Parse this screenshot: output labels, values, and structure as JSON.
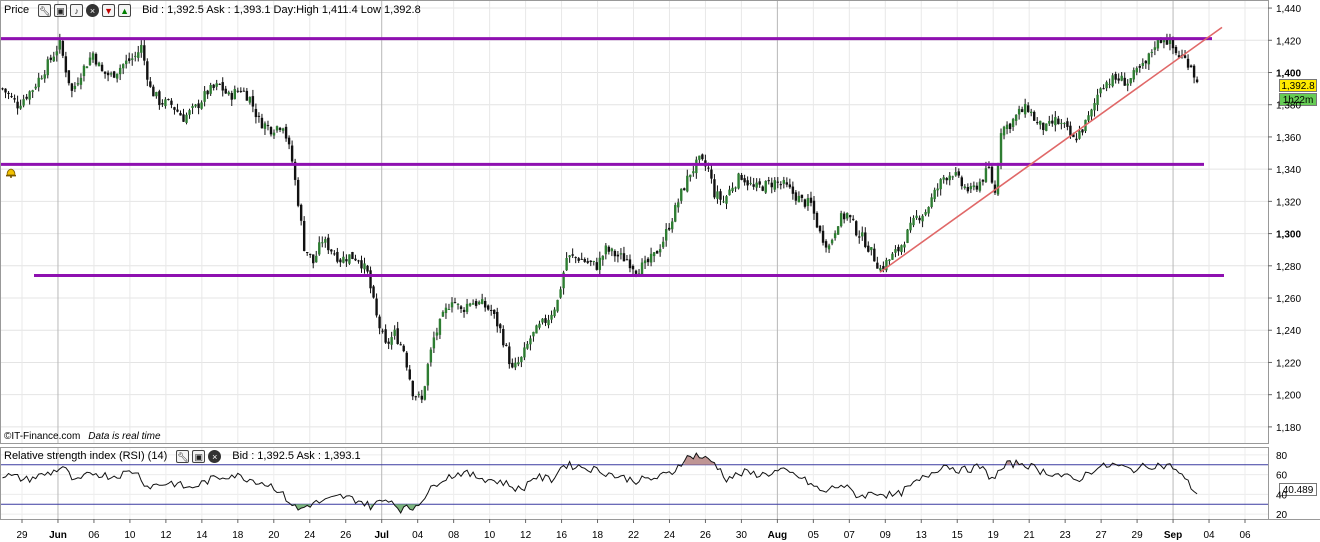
{
  "price_panel": {
    "label": "Price",
    "quote": "Bid : 1,392.5 Ask : 1,393.1 Day:High 1,411.4 Low 1,392.8",
    "icons": [
      "wrench-icon",
      "window-icon",
      "bell-icon",
      "close-icon",
      "down-arrow-icon",
      "up-arrow-icon"
    ],
    "price_badge": "1,392.8",
    "time_badge": "1h22m",
    "source": "©IT-Finance.com",
    "source_note": "Data is real time"
  },
  "rsi_panel": {
    "label": "Relative strength index (RSI) (14)",
    "quote": "Bid : 1,392.5 Ask : 1,393.1",
    "icons": [
      "wrench-icon",
      "window-icon",
      "close-icon"
    ],
    "value_badge": "40.489"
  },
  "colors": {
    "up_candle": "#2e7d32",
    "down_candle": "#111111",
    "support_resistance": "#8e10b0",
    "trendline": "#e06868",
    "rsi_line": "#111111",
    "rsi_bands": "#3a3aa0",
    "overbought_fill": "#b88a88",
    "oversold_fill": "#6fae6f",
    "price_badge_bg": "#ffea00",
    "time_badge_bg": "#66cc55"
  },
  "chart_data": [
    {
      "type": "candlestick",
      "x_axis": {
        "tick_labels": [
          "29",
          "Jun",
          "06",
          "10",
          "12",
          "14",
          "18",
          "20",
          "24",
          "26",
          "Jul",
          "04",
          "08",
          "10",
          "12",
          "16",
          "18",
          "22",
          "24",
          "26",
          "30",
          "Aug",
          "05",
          "07",
          "09",
          "13",
          "15",
          "19",
          "21",
          "23",
          "27",
          "29",
          "Sep",
          "04",
          "06"
        ],
        "bold_ticks": [
          "Jun",
          "Jul",
          "Aug",
          "Sep"
        ]
      },
      "y_axis": {
        "tick_labels": [
          "1,440",
          "1,420",
          "1,400",
          "1,380",
          "1,360",
          "1,340",
          "1,320",
          "1,300",
          "1,280",
          "1,260",
          "1,240",
          "1,220",
          "1,200",
          "1,180"
        ],
        "bold_ticks": [
          "1,400",
          "1,300"
        ],
        "range": [
          1170,
          1445
        ]
      },
      "grid": true,
      "series": [
        {
          "anchors": [
            [
              0,
              1390
            ],
            [
              5,
              1380
            ],
            [
              10,
              1390
            ],
            [
              15,
              1405
            ],
            [
              19,
              1418
            ],
            [
              21,
              1402
            ],
            [
              23,
              1388
            ],
            [
              26,
              1400
            ],
            [
              30,
              1412
            ],
            [
              33,
              1400
            ],
            [
              36,
              1398
            ],
            [
              40,
              1405
            ],
            [
              44,
              1410
            ],
            [
              46,
              1416
            ],
            [
              49,
              1390
            ],
            [
              52,
              1382
            ],
            [
              56,
              1380
            ],
            [
              60,
              1372
            ],
            [
              64,
              1378
            ],
            [
              68,
              1388
            ],
            [
              72,
              1392
            ],
            [
              75,
              1385
            ],
            [
              79,
              1390
            ],
            [
              82,
              1384
            ],
            [
              85,
              1370
            ],
            [
              89,
              1365
            ],
            [
              93,
              1368
            ],
            [
              96,
              1345
            ],
            [
              98,
              1320
            ],
            [
              100,
              1292
            ],
            [
              103,
              1282
            ],
            [
              106,
              1296
            ],
            [
              109,
              1290
            ],
            [
              112,
              1284
            ],
            [
              115,
              1286
            ],
            [
              118,
              1285
            ],
            [
              121,
              1275
            ],
            [
              124,
              1248
            ],
            [
              127,
              1230
            ],
            [
              130,
              1238
            ],
            [
              133,
              1228
            ],
            [
              136,
              1202
            ],
            [
              139,
              1196
            ],
            [
              141,
              1218
            ],
            [
              143,
              1235
            ],
            [
              146,
              1248
            ],
            [
              149,
              1260
            ],
            [
              152,
              1252
            ],
            [
              155,
              1258
            ],
            [
              159,
              1256
            ],
            [
              162,
              1252
            ],
            [
              165,
              1240
            ],
            [
              167,
              1228
            ],
            [
              169,
              1215
            ],
            [
              172,
              1222
            ],
            [
              175,
              1235
            ],
            [
              178,
              1242
            ],
            [
              181,
              1248
            ],
            [
              184,
              1258
            ],
            [
              187,
              1285
            ],
            [
              191,
              1285
            ],
            [
              194,
              1282
            ],
            [
              197,
              1280
            ],
            [
              200,
              1290
            ],
            [
              204,
              1286
            ],
            [
              207,
              1284
            ],
            [
              210,
              1278
            ],
            [
              213,
              1280
            ],
            [
              216,
              1286
            ],
            [
              219,
              1296
            ],
            [
              222,
              1310
            ],
            [
              225,
              1325
            ],
            [
              228,
              1338
            ],
            [
              231,
              1345
            ],
            [
              234,
              1340
            ],
            [
              236,
              1325
            ],
            [
              239,
              1320
            ],
            [
              242,
              1330
            ],
            [
              245,
              1336
            ],
            [
              249,
              1328
            ],
            [
              253,
              1330
            ],
            [
              256,
              1332
            ],
            [
              259,
              1330
            ],
            [
              262,
              1325
            ],
            [
              265,
              1320
            ],
            [
              268,
              1318
            ],
            [
              271,
              1300
            ],
            [
              274,
              1292
            ],
            [
              277,
              1308
            ],
            [
              280,
              1312
            ],
            [
              283,
              1302
            ],
            [
              286,
              1295
            ],
            [
              289,
              1285
            ],
            [
              291,
              1278
            ],
            [
              294,
              1284
            ],
            [
              297,
              1290
            ],
            [
              300,
              1300
            ],
            [
              303,
              1310
            ],
            [
              306,
              1314
            ],
            [
              309,
              1325
            ],
            [
              312,
              1335
            ],
            [
              315,
              1338
            ],
            [
              318,
              1330
            ],
            [
              321,
              1326
            ],
            [
              324,
              1332
            ],
            [
              327,
              1340
            ],
            [
              329,
              1325
            ],
            [
              331,
              1365
            ],
            [
              334,
              1368
            ],
            [
              337,
              1375
            ],
            [
              340,
              1378
            ],
            [
              343,
              1368
            ],
            [
              346,
              1365
            ],
            [
              349,
              1370
            ],
            [
              352,
              1366
            ],
            [
              355,
              1358
            ],
            [
              358,
              1365
            ],
            [
              361,
              1375
            ],
            [
              364,
              1392
            ],
            [
              367,
              1395
            ],
            [
              370,
              1396
            ],
            [
              373,
              1394
            ],
            [
              376,
              1400
            ],
            [
              379,
              1405
            ],
            [
              382,
              1418
            ],
            [
              385,
              1422
            ],
            [
              387,
              1418
            ],
            [
              389,
              1412
            ],
            [
              392,
              1408
            ],
            [
              394,
              1405
            ],
            [
              396,
              1393
            ]
          ]
        }
      ],
      "horizontal_levels": [
        1421,
        1343,
        1274
      ],
      "trendline": [
        [
          1276,
          1428
        ]
      ]
    },
    {
      "type": "line",
      "title": "Relative strength index (RSI) (14)",
      "y_axis": {
        "tick_labels": [
          "80",
          "60",
          "40",
          "20"
        ],
        "range": [
          15,
          88
        ]
      },
      "bands": [
        70,
        30
      ],
      "series": [
        {
          "anchors": [
            [
              0,
              60
            ],
            [
              8,
              55
            ],
            [
              16,
              62
            ],
            [
              20,
              68
            ],
            [
              24,
              52
            ],
            [
              30,
              62
            ],
            [
              36,
              58
            ],
            [
              44,
              64
            ],
            [
              48,
              48
            ],
            [
              56,
              52
            ],
            [
              62,
              46
            ],
            [
              70,
              56
            ],
            [
              76,
              60
            ],
            [
              84,
              54
            ],
            [
              90,
              48
            ],
            [
              94,
              36
            ],
            [
              98,
              24
            ],
            [
              102,
              30
            ],
            [
              108,
              34
            ],
            [
              112,
              38
            ],
            [
              118,
              34
            ],
            [
              122,
              28
            ],
            [
              128,
              36
            ],
            [
              132,
              25
            ],
            [
              136,
              26
            ],
            [
              140,
              38
            ],
            [
              145,
              55
            ],
            [
              152,
              62
            ],
            [
              160,
              56
            ],
            [
              166,
              52
            ],
            [
              172,
              44
            ],
            [
              176,
              58
            ],
            [
              182,
              55
            ],
            [
              186,
              70
            ],
            [
              192,
              68
            ],
            [
              198,
              64
            ],
            [
              204,
              58
            ],
            [
              210,
              54
            ],
            [
              216,
              56
            ],
            [
              222,
              62
            ],
            [
              226,
              76
            ],
            [
              230,
              80
            ],
            [
              236,
              72
            ],
            [
              240,
              56
            ],
            [
              246,
              62
            ],
            [
              252,
              60
            ],
            [
              258,
              64
            ],
            [
              264,
              58
            ],
            [
              272,
              42
            ],
            [
              278,
              50
            ],
            [
              284,
              38
            ],
            [
              290,
              42
            ],
            [
              296,
              38
            ],
            [
              302,
              50
            ],
            [
              308,
              62
            ],
            [
              312,
              70
            ],
            [
              318,
              64
            ],
            [
              324,
              68
            ],
            [
              328,
              56
            ],
            [
              333,
              70
            ],
            [
              338,
              72
            ],
            [
              344,
              64
            ],
            [
              350,
              60
            ],
            [
              356,
              54
            ],
            [
              362,
              66
            ],
            [
              368,
              70
            ],
            [
              374,
              65
            ],
            [
              382,
              70
            ],
            [
              388,
              68
            ],
            [
              392,
              55
            ],
            [
              396,
              40.489
            ]
          ]
        }
      ]
    }
  ]
}
